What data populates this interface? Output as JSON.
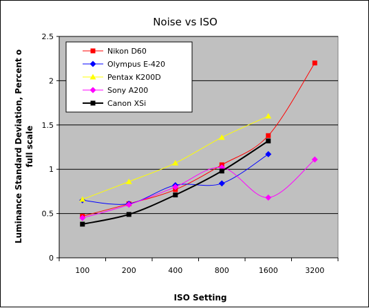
{
  "chart_data": {
    "type": "line",
    "title": "Noise vs ISO",
    "xlabel": "ISO Setting",
    "ylabel": "Luminance Standard Deviation, Percent o full scale",
    "ylabel_lines": [
      "Luminance Standard Deviation, Percent o",
      "full scale"
    ],
    "categories": [
      "100",
      "200",
      "400",
      "800",
      "1600",
      "3200"
    ],
    "ylim": [
      0,
      2.5
    ],
    "yticks": [
      "0",
      "0.5",
      "1",
      "1.5",
      "2",
      "2.5"
    ],
    "grid": "horizontal",
    "legend_position": "top-left",
    "plot_background": "#c0c0c0",
    "series": [
      {
        "name": "Nikon D60",
        "color": "#ff0000",
        "marker": "square",
        "width": 1,
        "values": [
          0.47,
          0.61,
          0.77,
          1.05,
          1.38,
          2.2
        ]
      },
      {
        "name": "Olympus E-420",
        "color": "#0000ff",
        "marker": "diamond",
        "width": 1,
        "values": [
          0.65,
          0.61,
          0.82,
          0.84,
          1.17,
          null
        ]
      },
      {
        "name": "Pentax K200D",
        "color": "#ffff00",
        "marker": "triangle",
        "width": 1,
        "values": [
          0.66,
          0.86,
          1.07,
          1.36,
          1.6,
          null
        ]
      },
      {
        "name": "Sony A200",
        "color": "#ff00ff",
        "marker": "diamond",
        "width": 1,
        "values": [
          0.45,
          0.6,
          0.8,
          1.02,
          0.68,
          1.11
        ]
      },
      {
        "name": "Canon XSi",
        "color": "#000000",
        "marker": "square",
        "width": 2,
        "values": [
          0.38,
          0.49,
          0.71,
          0.98,
          1.32,
          null
        ]
      }
    ]
  }
}
